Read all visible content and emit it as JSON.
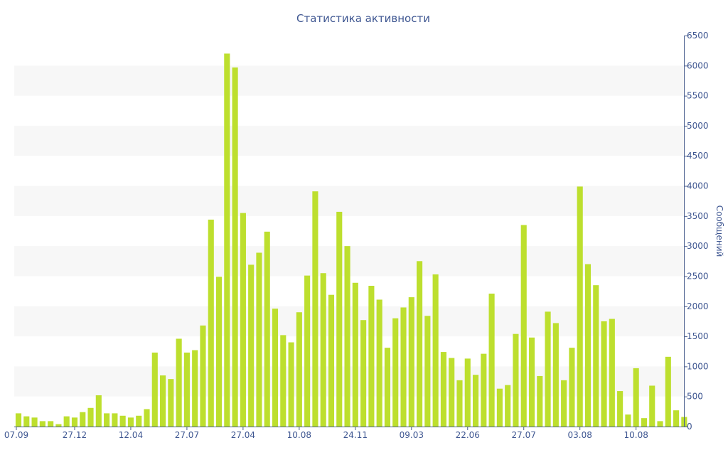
{
  "chart_data": {
    "type": "bar",
    "title": "Статистика активности",
    "xlabel": "",
    "ylabel": "Сообщений",
    "ylim": [
      0,
      6500
    ],
    "yticks": [
      0,
      500,
      1000,
      1500,
      2000,
      2500,
      3000,
      3500,
      4000,
      4500,
      5000,
      5500,
      6000,
      6500
    ],
    "x_tick_labels": [
      {
        "index": 0,
        "label": "07.09"
      },
      {
        "index": 7,
        "label": "27.12"
      },
      {
        "index": 14,
        "label": "12.04"
      },
      {
        "index": 21,
        "label": "27.07"
      },
      {
        "index": 28,
        "label": "27.04"
      },
      {
        "index": 35,
        "label": "10.08"
      },
      {
        "index": 42,
        "label": "24.11"
      },
      {
        "index": 49,
        "label": "09.03"
      },
      {
        "index": 56,
        "label": "22.06"
      },
      {
        "index": 63,
        "label": "27.07"
      },
      {
        "index": 70,
        "label": "03.08"
      },
      {
        "index": 77,
        "label": "10.08"
      }
    ],
    "values": [
      220,
      170,
      150,
      90,
      90,
      40,
      170,
      150,
      240,
      310,
      520,
      220,
      220,
      180,
      150,
      180,
      290,
      1230,
      850,
      790,
      1460,
      1230,
      1270,
      1680,
      3440,
      2490,
      6200,
      5970,
      3550,
      2690,
      2890,
      3240,
      1960,
      1520,
      1400,
      1900,
      2510,
      3910,
      2550,
      2190,
      3570,
      3000,
      2390,
      1770,
      2340,
      2110,
      1310,
      1800,
      1980,
      2150,
      2750,
      1840,
      2530,
      1240,
      1140,
      770,
      1130,
      860,
      1210,
      2210,
      630,
      690,
      1540,
      3350,
      1480,
      840,
      1910,
      1720,
      770,
      1310,
      3990,
      2700,
      2350,
      1750,
      1790,
      590,
      200,
      970,
      140,
      680,
      90,
      1160,
      270,
      160
    ],
    "grid": "horizontal alternating bands",
    "legend": "none",
    "colors": {
      "bar": "#bddf2e",
      "band": "#f7f7f7",
      "axis": "#4a5f8e",
      "text": "#3e5691"
    }
  }
}
